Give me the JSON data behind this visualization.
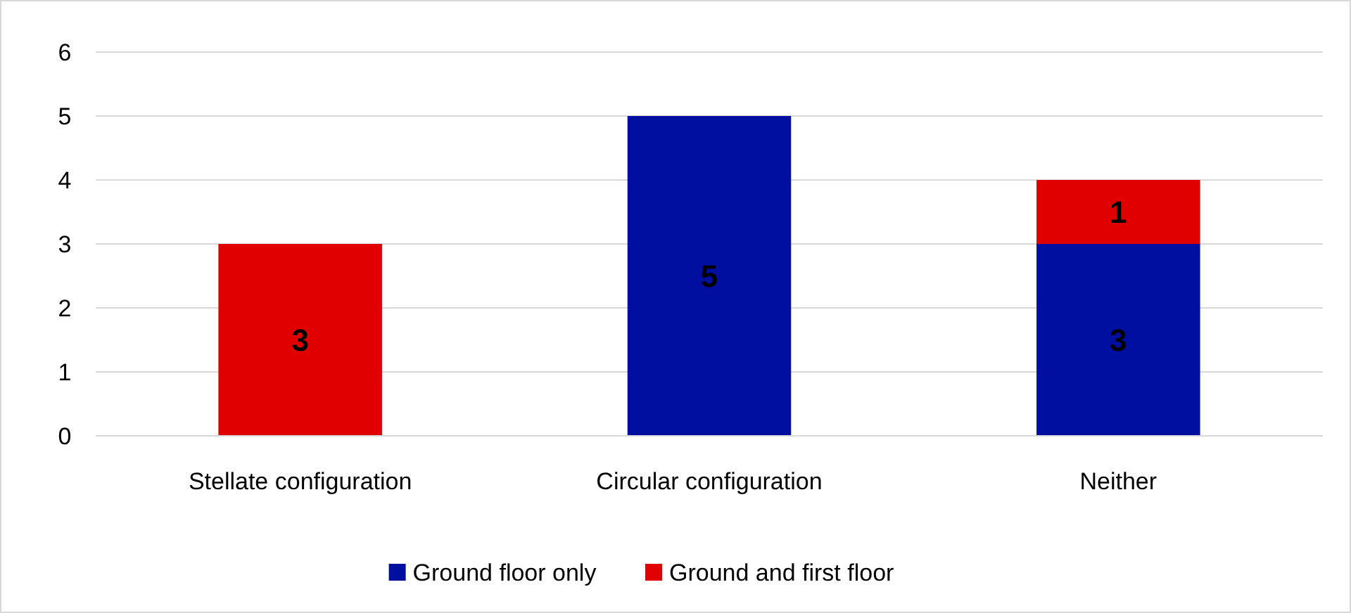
{
  "chart_data": {
    "type": "bar",
    "stacked": true,
    "categories": [
      "Stellate configuration",
      "Circular configuration",
      "Neither"
    ],
    "series": [
      {
        "name": "Ground floor only",
        "color": "#000f9f",
        "values": [
          null,
          5,
          3
        ]
      },
      {
        "name": "Ground and first floor",
        "color": "#e00000",
        "values": [
          3,
          null,
          1
        ]
      }
    ],
    "ylim": [
      0,
      6
    ],
    "yticks": [
      0,
      1,
      2,
      3,
      4,
      5,
      6
    ],
    "grid": "y",
    "legend": "bottom",
    "data_labels": true
  }
}
